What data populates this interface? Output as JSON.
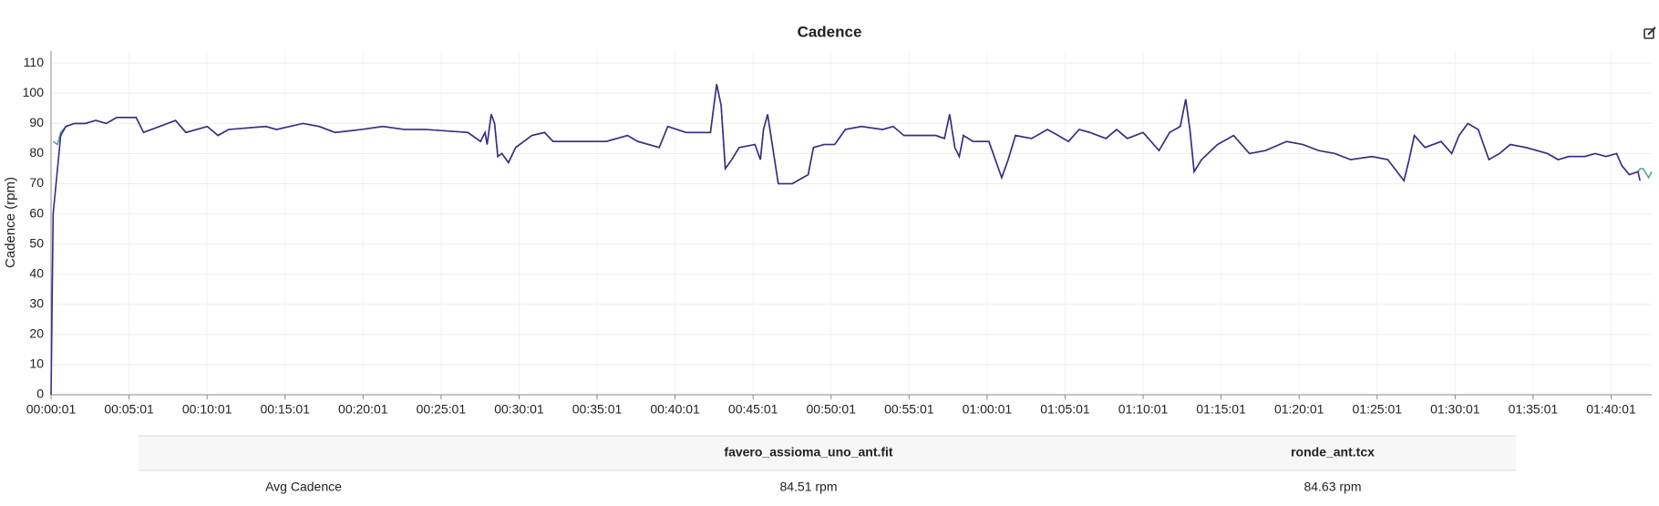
{
  "chart_data": {
    "type": "line",
    "title": "Cadence",
    "ylabel": "Cadence (rpm)",
    "x": [
      1,
      9,
      26,
      38,
      58,
      91,
      132,
      173,
      213,
      254,
      328,
      357,
      418,
      480,
      520,
      602,
      643,
      684,
      827,
      868,
      970,
      1032,
      1093,
      1195,
      1277,
      1359,
      1441,
      1604,
      1653,
      1670,
      1678,
      1694,
      1707,
      1719,
      1735,
      1760,
      1788,
      1850,
      1899,
      1932,
      2013,
      2136,
      2218,
      2258,
      2340,
      2373,
      2443,
      2537,
      2561,
      2578,
      2594,
      2619,
      2647,
      2708,
      2729,
      2741,
      2757,
      2773,
      2798,
      2852,
      2913,
      2933,
      2974,
      3015,
      3056,
      3118,
      3199,
      3240,
      3281,
      3363,
      3404,
      3437,
      3457,
      3477,
      3494,
      3510,
      3547,
      3608,
      3657,
      3682,
      3710,
      3772,
      3833,
      3874,
      3914,
      3955,
      3996,
      4058,
      4099,
      4140,
      4201,
      4262,
      4303,
      4344,
      4365,
      4381,
      4397,
      4426,
      4487,
      4549,
      4610,
      4672,
      4753,
      4815,
      4876,
      4938,
      4999,
      5081,
      5142,
      5204,
      5224,
      5244,
      5285,
      5347,
      5388,
      5416,
      5450,
      5490,
      5531,
      5572,
      5613,
      5674,
      5756,
      5797,
      5838,
      5899,
      5940,
      5981,
      6022,
      6042,
      6071,
      6104,
      6112,
      6124,
      6145,
      6157
    ],
    "series": [
      {
        "name": "favero_assioma_uno_ant.fit",
        "color": "#4aa8a0",
        "values": [
          null,
          84,
          83,
          87,
          89,
          90,
          90,
          91,
          90,
          92,
          92,
          87,
          89,
          91,
          87,
          89,
          86,
          88,
          89,
          88,
          90,
          89,
          87,
          88,
          89,
          88,
          88,
          87,
          84,
          87,
          83,
          93,
          90,
          79,
          80,
          77,
          82,
          86,
          87,
          84,
          84,
          84,
          86,
          84,
          82,
          89,
          87,
          87,
          103,
          96,
          75,
          78,
          82,
          83,
          78,
          88,
          93,
          84,
          70,
          70,
          73,
          82,
          83,
          83,
          88,
          89,
          88,
          89,
          86,
          86,
          86,
          85,
          93,
          82,
          79,
          86,
          84,
          84,
          72,
          78,
          86,
          85,
          88,
          86,
          84,
          88,
          87,
          85,
          88,
          85,
          87,
          81,
          87,
          89,
          98,
          88,
          74,
          78,
          83,
          86,
          80,
          81,
          84,
          83,
          81,
          80,
          78,
          79,
          78,
          71,
          78,
          86,
          82,
          84,
          80,
          86,
          90,
          88,
          78,
          80,
          83,
          82,
          80,
          78,
          79,
          79,
          80,
          79,
          80,
          76,
          73,
          74,
          75,
          75,
          72,
          74
        ]
      },
      {
        "name": "ronde_ant.tcx",
        "color": "#3f2a86",
        "values": [
          0,
          60,
          75,
          86,
          89,
          90,
          90,
          91,
          90,
          92,
          92,
          87,
          89,
          91,
          87,
          89,
          86,
          88,
          89,
          88,
          90,
          89,
          87,
          88,
          89,
          88,
          88,
          87,
          84,
          87,
          83,
          93,
          90,
          79,
          80,
          77,
          82,
          86,
          87,
          84,
          84,
          84,
          86,
          84,
          82,
          89,
          87,
          87,
          103,
          96,
          75,
          78,
          82,
          83,
          78,
          88,
          93,
          84,
          70,
          70,
          73,
          82,
          83,
          83,
          88,
          89,
          88,
          89,
          86,
          86,
          86,
          85,
          93,
          82,
          79,
          86,
          84,
          84,
          72,
          78,
          86,
          85,
          88,
          86,
          84,
          88,
          87,
          85,
          88,
          85,
          87,
          81,
          87,
          89,
          98,
          88,
          74,
          78,
          83,
          86,
          80,
          81,
          84,
          83,
          81,
          80,
          78,
          79,
          78,
          71,
          78,
          86,
          82,
          84,
          80,
          86,
          90,
          88,
          78,
          80,
          83,
          82,
          80,
          78,
          79,
          79,
          80,
          79,
          80,
          76,
          73,
          74,
          71,
          null,
          null,
          null
        ]
      }
    ],
    "xlim": [
      1,
      6157
    ],
    "xticks": [
      {
        "value": 1,
        "label": "00:00:01"
      },
      {
        "value": 301,
        "label": "00:05:01"
      },
      {
        "value": 601,
        "label": "00:10:01"
      },
      {
        "value": 901,
        "label": "00:15:01"
      },
      {
        "value": 1201,
        "label": "00:20:01"
      },
      {
        "value": 1501,
        "label": "00:25:01"
      },
      {
        "value": 1801,
        "label": "00:30:01"
      },
      {
        "value": 2101,
        "label": "00:35:01"
      },
      {
        "value": 2401,
        "label": "00:40:01"
      },
      {
        "value": 2701,
        "label": "00:45:01"
      },
      {
        "value": 3001,
        "label": "00:50:01"
      },
      {
        "value": 3301,
        "label": "00:55:01"
      },
      {
        "value": 3601,
        "label": "01:00:01"
      },
      {
        "value": 3901,
        "label": "01:05:01"
      },
      {
        "value": 4201,
        "label": "01:10:01"
      },
      {
        "value": 4501,
        "label": "01:15:01"
      },
      {
        "value": 4801,
        "label": "01:20:01"
      },
      {
        "value": 5101,
        "label": "01:25:01"
      },
      {
        "value": 5401,
        "label": "01:30:01"
      },
      {
        "value": 5701,
        "label": "01:35:01"
      },
      {
        "value": 6001,
        "label": "01:40:01"
      }
    ],
    "ylim": [
      0,
      114
    ],
    "yticks": [
      0,
      10,
      20,
      30,
      40,
      50,
      60,
      70,
      80,
      90,
      100,
      110
    ],
    "grid": true
  },
  "table": {
    "rows": [
      {
        "label": "Avg Cadence",
        "values": [
          "84.51 rpm",
          "84.63 rpm"
        ]
      }
    ]
  }
}
